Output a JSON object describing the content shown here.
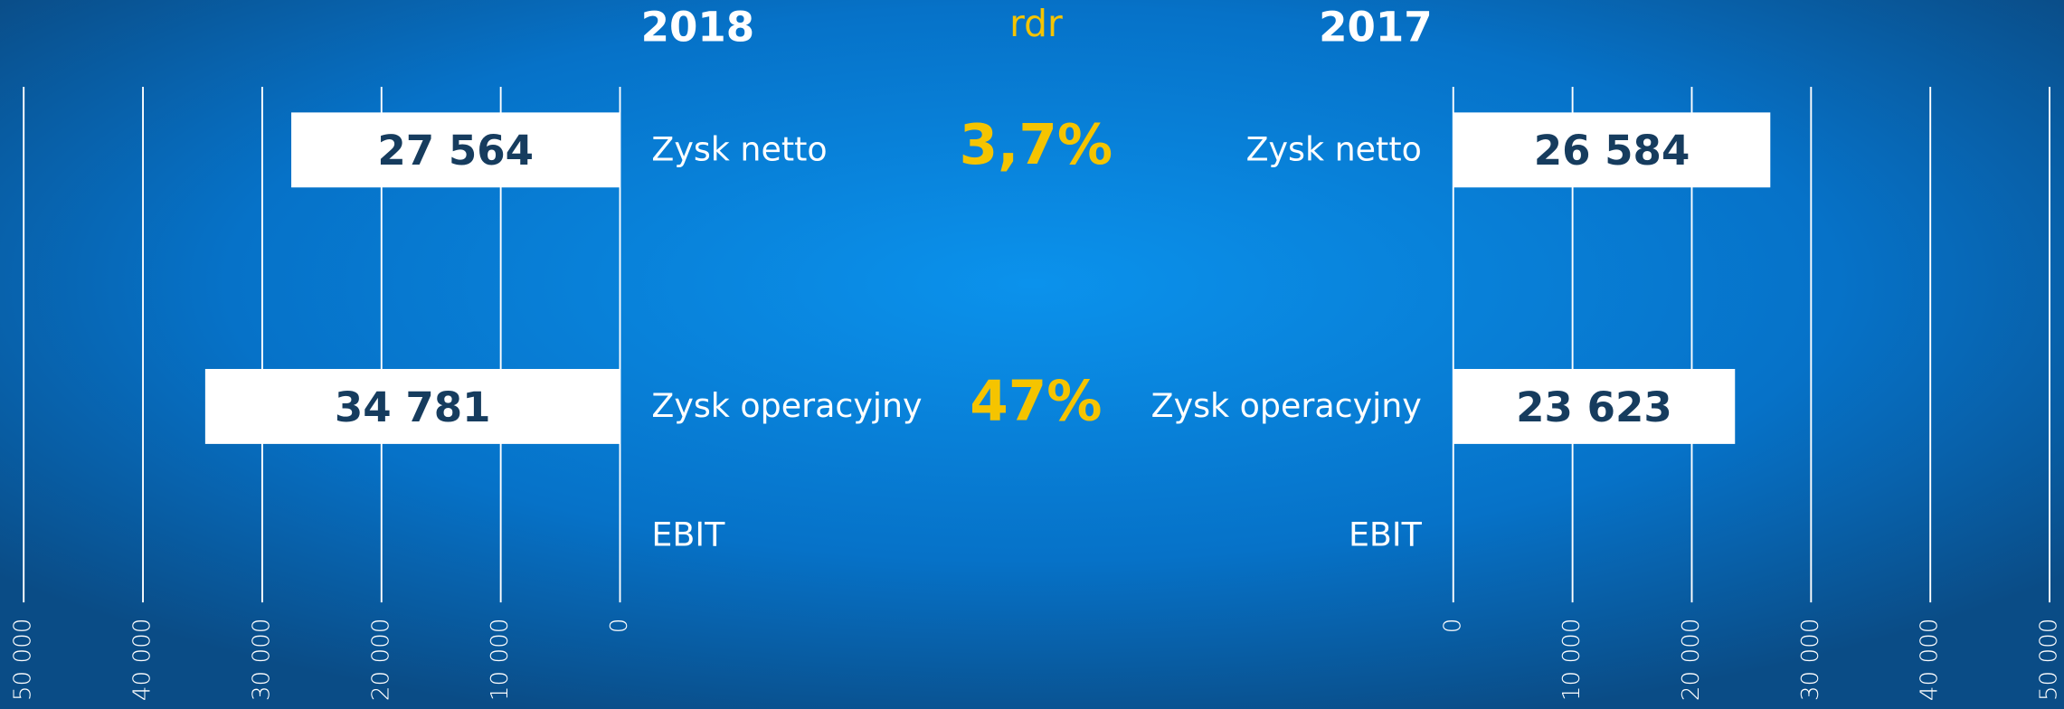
{
  "chart_data": [
    {
      "type": "bar",
      "orientation": "horizontal",
      "title": "2018",
      "x_reversed": true,
      "categories": [
        "Zysk netto",
        "Zysk operacyjny",
        "EBIT"
      ],
      "values": [
        27564,
        34781,
        null
      ],
      "value_labels": [
        "27 564",
        "34 781",
        null
      ],
      "color": "#ffffff",
      "xlim": [
        0,
        50000
      ],
      "xticks": [
        0,
        {
          "value": 10000,
          "label": "10 000"
        },
        {
          "value": 20000,
          "label": "20 000"
        },
        {
          "value": 30000,
          "label": "30 000"
        },
        {
          "value": 40000,
          "label": "40 000"
        },
        {
          "value": 50000,
          "label": "50 000"
        }
      ],
      "grid": true
    },
    {
      "type": "bar",
      "orientation": "horizontal",
      "title": "2017",
      "x_reversed": false,
      "categories": [
        "Zysk netto",
        "Zysk operacyjny",
        "EBIT"
      ],
      "values": [
        26584,
        23623,
        null
      ],
      "value_labels": [
        "26 584",
        "23 623",
        null
      ],
      "color": "#ffffff",
      "xlim": [
        0,
        50000
      ],
      "xticks": [
        0,
        {
          "value": 10000,
          "label": "10 000"
        },
        {
          "value": 20000,
          "label": "20 000"
        },
        {
          "value": 30000,
          "label": "30 000"
        },
        {
          "value": 40000,
          "label": "40 000"
        },
        {
          "value": 50000,
          "label": "50 000"
        }
      ],
      "grid": true
    }
  ],
  "change": {
    "title": "rdr",
    "values": [
      3.7,
      47
    ],
    "value_labels": [
      "3,7%",
      "47%"
    ],
    "color": "#f5c400"
  }
}
